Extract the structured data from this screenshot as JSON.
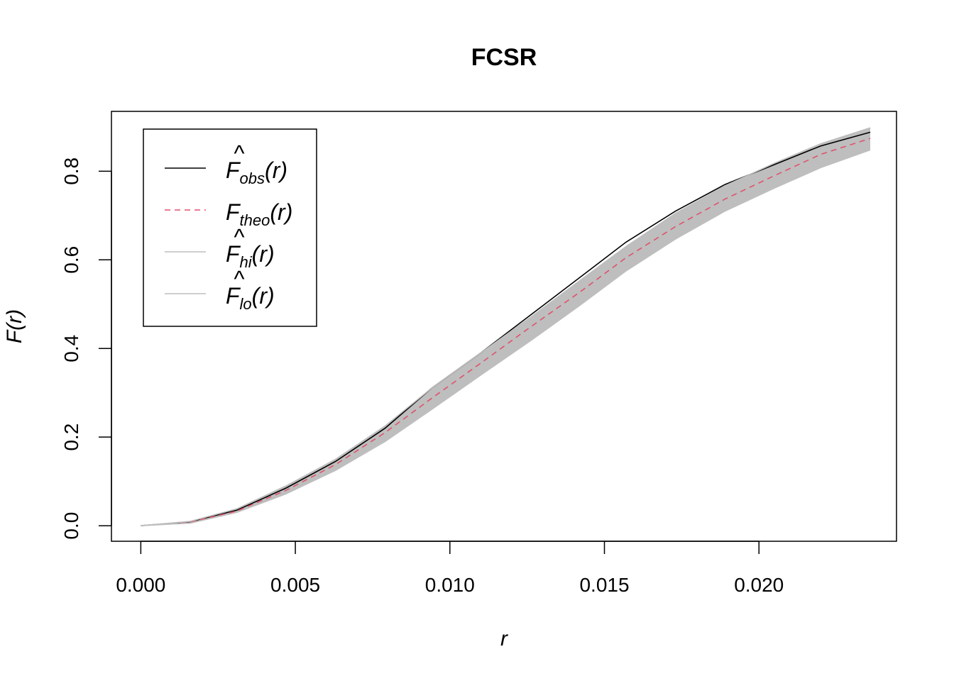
{
  "chart_data": {
    "type": "line",
    "title": "FCSR",
    "xlabel": "r",
    "ylabel": "F(r)",
    "xlim": [
      -0.00095,
      0.02445
    ],
    "ylim": [
      -0.035,
      0.935
    ],
    "x_ticks": [
      0.0,
      0.005,
      0.01,
      0.015,
      0.02
    ],
    "x_tick_labels": [
      "0.000",
      "0.005",
      "0.010",
      "0.015",
      "0.020"
    ],
    "y_ticks": [
      0.0,
      0.2,
      0.4,
      0.6,
      0.8
    ],
    "y_tick_labels": [
      "0.0",
      "0.2",
      "0.4",
      "0.6",
      "0.8"
    ],
    "legend_position": "top-left",
    "x": [
      0.0,
      0.0016,
      0.0031,
      0.0047,
      0.0063,
      0.0079,
      0.0094,
      0.011,
      0.0126,
      0.0142,
      0.0157,
      0.0173,
      0.0189,
      0.0205,
      0.022,
      0.0236
    ],
    "series": [
      {
        "name": "obs",
        "style": "solid",
        "color": "#000000",
        "values": [
          0.0,
          0.009,
          0.035,
          0.085,
          0.145,
          0.22,
          0.31,
          0.39,
          0.475,
          0.56,
          0.64,
          0.71,
          0.77,
          0.815,
          0.857,
          0.888
        ]
      },
      {
        "name": "theo",
        "style": "dashed",
        "color": "#DF536B",
        "values": [
          0.0,
          0.008,
          0.033,
          0.08,
          0.138,
          0.21,
          0.287,
          0.367,
          0.448,
          0.527,
          0.605,
          0.675,
          0.737,
          0.79,
          0.838,
          0.874
        ]
      },
      {
        "name": "hi",
        "style": "band-upper",
        "color": "#BEBEBE",
        "values": [
          0.0,
          0.01,
          0.038,
          0.09,
          0.15,
          0.225,
          0.31,
          0.39,
          0.47,
          0.553,
          0.63,
          0.705,
          0.767,
          0.818,
          0.862,
          0.898
        ]
      },
      {
        "name": "lo",
        "style": "band-lower",
        "color": "#BEBEBE",
        "values": [
          0.0,
          0.006,
          0.03,
          0.072,
          0.125,
          0.19,
          0.262,
          0.34,
          0.417,
          0.497,
          0.575,
          0.647,
          0.71,
          0.762,
          0.808,
          0.848
        ]
      }
    ]
  },
  "legend": {
    "items": [
      {
        "key": "obs",
        "base": "F",
        "hat": "^",
        "sub": "obs",
        "arg": "(r)",
        "color": "#000000",
        "style": "solid"
      },
      {
        "key": "theo",
        "base": "F",
        "hat": "",
        "sub": "theo",
        "arg": "(r)",
        "color": "#DF536B",
        "style": "dashed"
      },
      {
        "key": "hi",
        "base": "F",
        "hat": "^",
        "sub": "hi",
        "arg": "(r)",
        "color": "#BEBEBE",
        "style": "solid"
      },
      {
        "key": "lo",
        "base": "F",
        "hat": "^",
        "sub": "lo",
        "arg": "(r)",
        "color": "#BEBEBE",
        "style": "solid"
      }
    ]
  }
}
